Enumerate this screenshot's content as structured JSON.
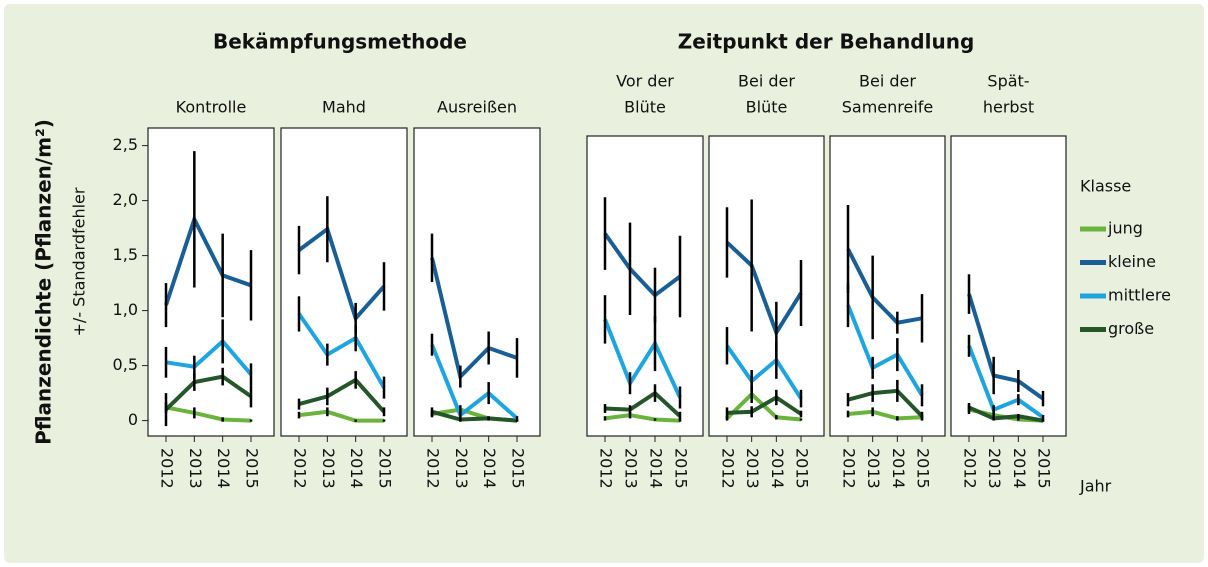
{
  "group_titles": [
    "Bekämpfungsmethode",
    "Zeitpunkt der Behandlung"
  ],
  "ylabel": "Pflanzendichte (Pflanzen/m²)",
  "ylabel_sub": "+/- Standardfehler",
  "xlabel": "Jahr",
  "legend": {
    "title": "Klasse",
    "items": [
      {
        "name": "jung",
        "color": "#6ab43e"
      },
      {
        "name": "kleine",
        "color": "#1a5e96"
      },
      {
        "name": "mittlere",
        "color": "#1ea5e0"
      },
      {
        "name": "große",
        "color": "#24562a"
      }
    ]
  },
  "chart_data": [
    {
      "type": "line",
      "title": [
        "Kontrolle"
      ],
      "categories": [
        "2012",
        "2013",
        "2014",
        "2015"
      ],
      "ylim": [
        -0.14,
        2.66
      ],
      "yticks": [
        0,
        {
          "value": 0.5,
          "label": "0,5"
        },
        {
          "value": 1.0,
          "label": "1,0"
        },
        {
          "value": 1.5,
          "label": "1,5"
        },
        {
          "value": 2.0,
          "label": "2,0"
        },
        {
          "value": 2.5,
          "label": "2,5"
        }
      ],
      "series": [
        {
          "values": [
            0.12,
            0.07,
            0.01,
            0.0
          ],
          "errors": [
            0.05,
            0.05,
            0.02,
            0.01
          ]
        },
        {
          "values": [
            1.05,
            1.83,
            1.32,
            1.23
          ],
          "errors": [
            0.2,
            0.62,
            0.38,
            0.32
          ]
        },
        {
          "values": [
            0.53,
            0.49,
            0.72,
            0.42
          ],
          "errors": [
            0.14,
            0.1,
            0.2,
            0.1
          ]
        },
        {
          "values": [
            0.1,
            0.35,
            0.4,
            0.22
          ],
          "errors": [
            0.15,
            0.08,
            0.08,
            0.1
          ]
        }
      ]
    },
    {
      "type": "line",
      "title": [
        "Mahd"
      ],
      "categories": [
        "2012",
        "2013",
        "2014",
        "2015"
      ],
      "ylim": [
        -0.14,
        2.66
      ],
      "series": [
        {
          "values": [
            0.05,
            0.08,
            0.0,
            0.0
          ],
          "errors": [
            0.03,
            0.04,
            0.01,
            0.01
          ]
        },
        {
          "values": [
            1.55,
            1.74,
            0.93,
            1.22
          ],
          "errors": [
            0.22,
            0.3,
            0.14,
            0.22
          ]
        },
        {
          "values": [
            0.97,
            0.6,
            0.75,
            0.3
          ],
          "errors": [
            0.16,
            0.1,
            0.12,
            0.1
          ]
        },
        {
          "values": [
            0.15,
            0.22,
            0.37,
            0.08
          ],
          "errors": [
            0.05,
            0.08,
            0.08,
            0.04
          ]
        }
      ]
    },
    {
      "type": "line",
      "title": [
        "Ausreißen"
      ],
      "categories": [
        "2012",
        "2013",
        "2014",
        "2015"
      ],
      "ylim": [
        -0.14,
        2.66
      ],
      "series": [
        {
          "values": [
            0.06,
            0.1,
            0.02,
            0.0
          ],
          "errors": [
            0.03,
            0.04,
            0.01,
            0.01
          ]
        },
        {
          "values": [
            1.48,
            0.4,
            0.66,
            0.57
          ],
          "errors": [
            0.22,
            0.1,
            0.15,
            0.18
          ]
        },
        {
          "values": [
            0.69,
            0.05,
            0.25,
            0.02
          ],
          "errors": [
            0.1,
            0.05,
            0.1,
            0.02
          ]
        },
        {
          "values": [
            0.08,
            0.01,
            0.02,
            0.0
          ],
          "errors": [
            0.04,
            0.02,
            0.02,
            0.01
          ]
        }
      ]
    },
    {
      "type": "line",
      "title": [
        "Vor der",
        "Blüte"
      ],
      "categories": [
        "2012",
        "2013",
        "2014",
        "2015"
      ],
      "ylim": [
        -0.14,
        2.66
      ],
      "series": [
        {
          "values": [
            0.02,
            0.05,
            0.01,
            0.0
          ],
          "errors": [
            0.02,
            0.03,
            0.01,
            0.01
          ]
        },
        {
          "values": [
            1.7,
            1.38,
            1.14,
            1.31
          ],
          "errors": [
            0.33,
            0.42,
            0.25,
            0.37
          ]
        },
        {
          "values": [
            0.92,
            0.34,
            0.7,
            0.21
          ],
          "errors": [
            0.22,
            0.1,
            0.25,
            0.1
          ]
        },
        {
          "values": [
            0.11,
            0.1,
            0.25,
            0.04
          ],
          "errors": [
            0.04,
            0.04,
            0.08,
            0.04
          ]
        }
      ]
    },
    {
      "type": "line",
      "title": [
        "Bei der",
        "Blüte"
      ],
      "categories": [
        "2012",
        "2013",
        "2014",
        "2015"
      ],
      "ylim": [
        -0.14,
        2.66
      ],
      "series": [
        {
          "values": [
            0.02,
            0.24,
            0.03,
            0.01
          ],
          "errors": [
            0.02,
            0.08,
            0.02,
            0.01
          ]
        },
        {
          "values": [
            1.62,
            1.41,
            0.8,
            1.16
          ],
          "errors": [
            0.32,
            0.6,
            0.28,
            0.3
          ]
        },
        {
          "values": [
            0.68,
            0.36,
            0.55,
            0.2
          ],
          "errors": [
            0.17,
            0.1,
            0.17,
            0.08
          ]
        },
        {
          "values": [
            0.07,
            0.08,
            0.21,
            0.06
          ],
          "errors": [
            0.05,
            0.05,
            0.07,
            0.03
          ]
        }
      ]
    },
    {
      "type": "line",
      "title": [
        "Bei der",
        "Samenreife"
      ],
      "categories": [
        "2012",
        "2013",
        "2014",
        "2015"
      ],
      "ylim": [
        -0.14,
        2.66
      ],
      "series": [
        {
          "values": [
            0.06,
            0.08,
            0.02,
            0.03
          ],
          "errors": [
            0.03,
            0.04,
            0.02,
            0.02
          ]
        },
        {
          "values": [
            1.56,
            1.12,
            0.89,
            0.93
          ],
          "errors": [
            0.4,
            0.38,
            0.1,
            0.22
          ]
        },
        {
          "values": [
            1.05,
            0.48,
            0.6,
            0.23
          ],
          "errors": [
            0.2,
            0.1,
            0.15,
            0.1
          ]
        },
        {
          "values": [
            0.19,
            0.25,
            0.27,
            0.04
          ],
          "errors": [
            0.06,
            0.08,
            0.1,
            0.04
          ]
        }
      ]
    },
    {
      "type": "line",
      "title": [
        "Spät-",
        "herbst"
      ],
      "categories": [
        "2012",
        "2013",
        "2014",
        "2015"
      ],
      "ylim": [
        -0.14,
        2.66
      ],
      "series": [
        {
          "values": [
            0.1,
            0.05,
            0.01,
            0.0
          ],
          "errors": [
            0.04,
            0.02,
            0.01,
            0.01
          ]
        },
        {
          "values": [
            1.15,
            0.41,
            0.36,
            0.2
          ],
          "errors": [
            0.18,
            0.17,
            0.1,
            0.07
          ]
        },
        {
          "values": [
            0.68,
            0.1,
            0.19,
            0.03
          ],
          "errors": [
            0.1,
            0.04,
            0.05,
            0.02
          ]
        },
        {
          "values": [
            0.12,
            0.02,
            0.04,
            0.0
          ],
          "errors": [
            0.04,
            0.02,
            0.02,
            0.01
          ]
        }
      ]
    }
  ]
}
